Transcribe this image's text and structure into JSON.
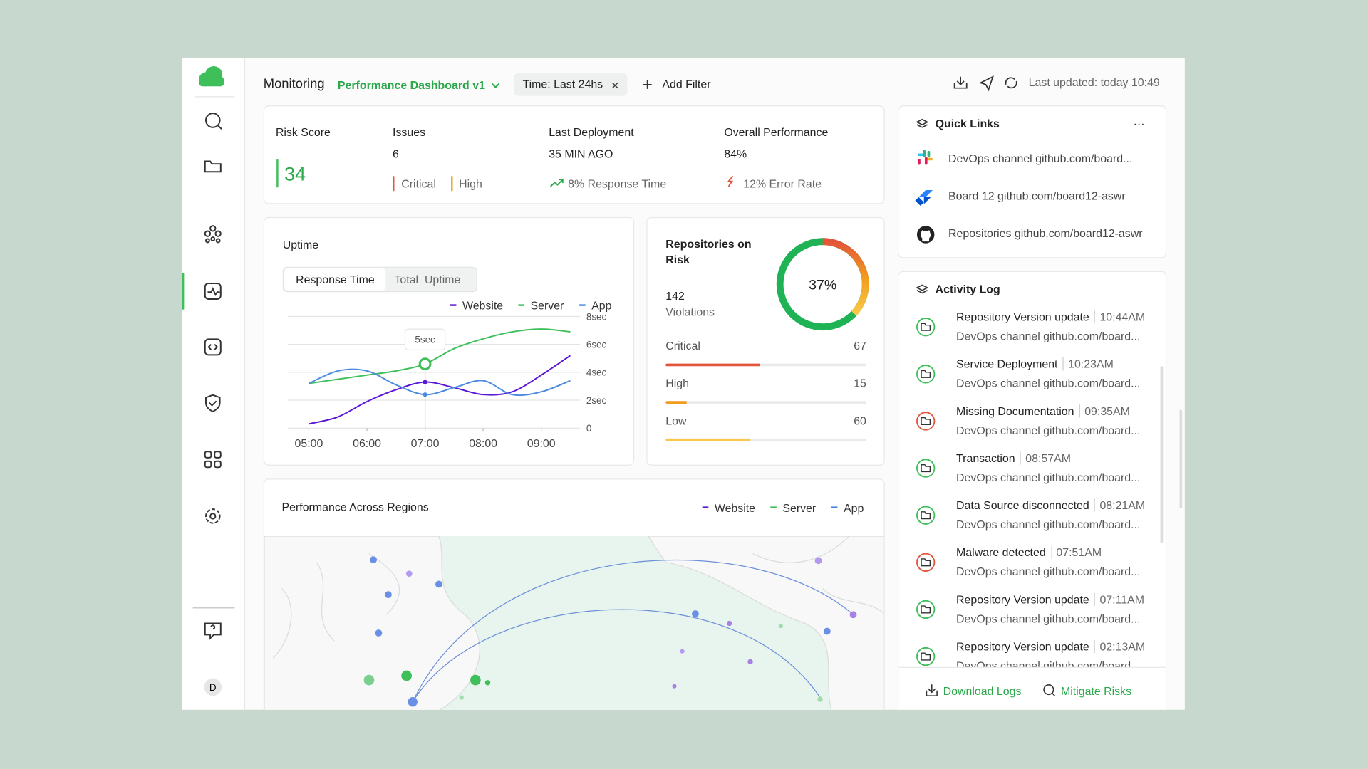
{
  "header": {
    "section": "Monitoring",
    "dashboard": "Performance Dashboard v1",
    "filter": "Time: Last 24hs",
    "add_filter": "Add Filter",
    "last_updated": "Last updated: today 10:49"
  },
  "sidebar": {
    "avatar": "D"
  },
  "summary": {
    "risk_score": {
      "label": "Risk Score",
      "value": 34
    },
    "issues": {
      "label": "Issues",
      "value": 6,
      "tags": [
        "Critical",
        "High"
      ]
    },
    "last_deployment": {
      "label": "Last Deployment",
      "value": "35 MIN AGO"
    },
    "overall_performance": {
      "label": "Overall Performance",
      "value": "84%",
      "trend": "8% Response Time",
      "error": "12% Error Rate"
    }
  },
  "uptime": {
    "title": "Uptime",
    "tabs": [
      "Response Time",
      "Total  Uptime"
    ],
    "tooltip": "5sec",
    "chart_data": {
      "type": "line",
      "categories": [
        "05:00",
        null,
        "06:00",
        null,
        "07:00",
        null,
        "08:00",
        null,
        "09:00",
        null
      ],
      "ylim": [
        0,
        8
      ],
      "yticks": [
        {
          "value": 0,
          "label": "0"
        },
        {
          "value": 2,
          "label": "2sec"
        },
        {
          "value": 4,
          "label": "4sec"
        },
        {
          "value": 6,
          "label": "6sec"
        },
        {
          "value": 8,
          "label": "8sec"
        }
      ],
      "grid": true,
      "series": [
        {
          "name": "Website",
          "color": "#5b17d6",
          "values": [
            0.3,
            0.8,
            1.9,
            2.75,
            3.3,
            2.9,
            2.4,
            2.6,
            3.8,
            5.2
          ]
        },
        {
          "name": "Server",
          "color": "#3fbf5a",
          "values": [
            3.2,
            3.5,
            3.8,
            4.1,
            4.6,
            5.7,
            6.4,
            6.9,
            7.1,
            6.9
          ]
        },
        {
          "name": "App",
          "color": "#4a8ae0",
          "values": [
            3.2,
            4.1,
            4.1,
            3.1,
            2.4,
            2.9,
            3.4,
            2.4,
            2.6,
            3.4
          ]
        }
      ]
    }
  },
  "repositories": {
    "title": "Repositories on Risk",
    "violations": 142,
    "violations_label": "Violations",
    "risk_percent": {
      "value": 37,
      "label": "37%"
    },
    "levels": [
      {
        "name": "Critical",
        "value": 67,
        "color": "#e2553a"
      },
      {
        "name": "High",
        "value": 15,
        "color": "#f29b1d"
      },
      {
        "name": "Low",
        "value": 60,
        "color": "#f7c948"
      }
    ]
  },
  "regions": {
    "title": "Performance Across Regions"
  },
  "quick_links": {
    "title": "Quick Links",
    "more": "···",
    "items": [
      "DevOps channel github.com/board...",
      "Board 12 github.com/board12-aswr",
      "Repositories github.com/board12-aswr"
    ]
  },
  "activity_log": {
    "title": "Activity Log",
    "items": [
      {
        "title": "Repository Version update",
        "time": "10:44AM",
        "detail": "DevOps channel github.com/board...",
        "color": "#3fbf5a"
      },
      {
        "title": "Service Deployment",
        "time": "10:23AM",
        "detail": "DevOps channel github.com/board...",
        "color": "#3fbf5a"
      },
      {
        "title": "Missing Documentation",
        "time": "09:35AM",
        "detail": "DevOps channel github.com/board...",
        "color": "#e2553a"
      },
      {
        "title": "Transaction",
        "time": "08:57AM",
        "detail": "DevOps channel github.com/board...",
        "color": "#3fbf5a"
      },
      {
        "title": "Data Source disconnected",
        "time": "08:21AM",
        "detail": "DevOps channel github.com/board...",
        "color": "#3fbf5a"
      },
      {
        "title": "Malware detected",
        "time": "07:51AM",
        "detail": "DevOps channel github.com/board...",
        "color": "#e2553a"
      },
      {
        "title": "Repository Version update",
        "time": "07:11AM",
        "detail": "DevOps channel github.com/board...",
        "color": "#3fbf5a"
      },
      {
        "title": "Repository Version update",
        "time": "02:13AM",
        "detail": "DevOps channel github.com/board...",
        "color": "#3fbf5a"
      }
    ],
    "download": "Download Logs",
    "mitigate": "Mitigate Risks"
  }
}
